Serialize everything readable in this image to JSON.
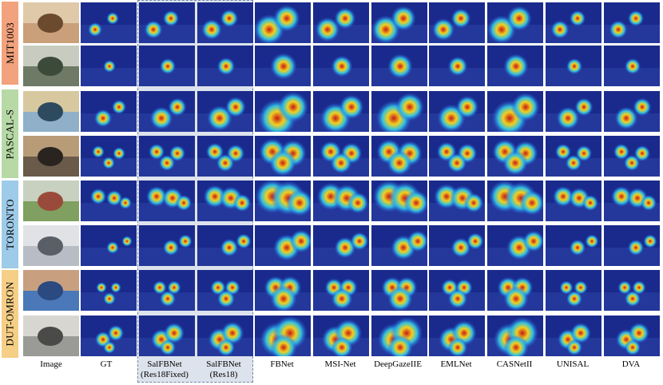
{
  "row_labels": [
    {
      "label": "MIT1003",
      "color": "#f2a27d"
    },
    {
      "label": "PASCAL-S",
      "color": "#b7d9a6"
    },
    {
      "label": "TORONTO",
      "color": "#9ecbe8"
    },
    {
      "label": "DUT-OMRON",
      "color": "#f5cf86"
    }
  ],
  "columns": [
    {
      "line1": "Image",
      "line2": ""
    },
    {
      "line1": "GT",
      "line2": ""
    },
    {
      "line1": "SalFBNet",
      "line2": "(Res18Fixed)"
    },
    {
      "line1": "SalFBNet",
      "line2": "(Res18)"
    },
    {
      "line1": "FBNet",
      "line2": ""
    },
    {
      "line1": "MSI-Net",
      "line2": ""
    },
    {
      "line1": "DeepGazeIIE",
      "line2": ""
    },
    {
      "line1": "EMLNet",
      "line2": ""
    },
    {
      "line1": "CASNetII",
      "line2": ""
    },
    {
      "line1": "UNISAL",
      "line2": ""
    },
    {
      "line1": "DVA",
      "line2": ""
    }
  ],
  "colors": {
    "heatmap_low": "#1a2a8c",
    "heatmap_high": "#d7191c",
    "highlight_fill": "#dde3ec",
    "highlight_border": "#6f8aa8"
  }
}
